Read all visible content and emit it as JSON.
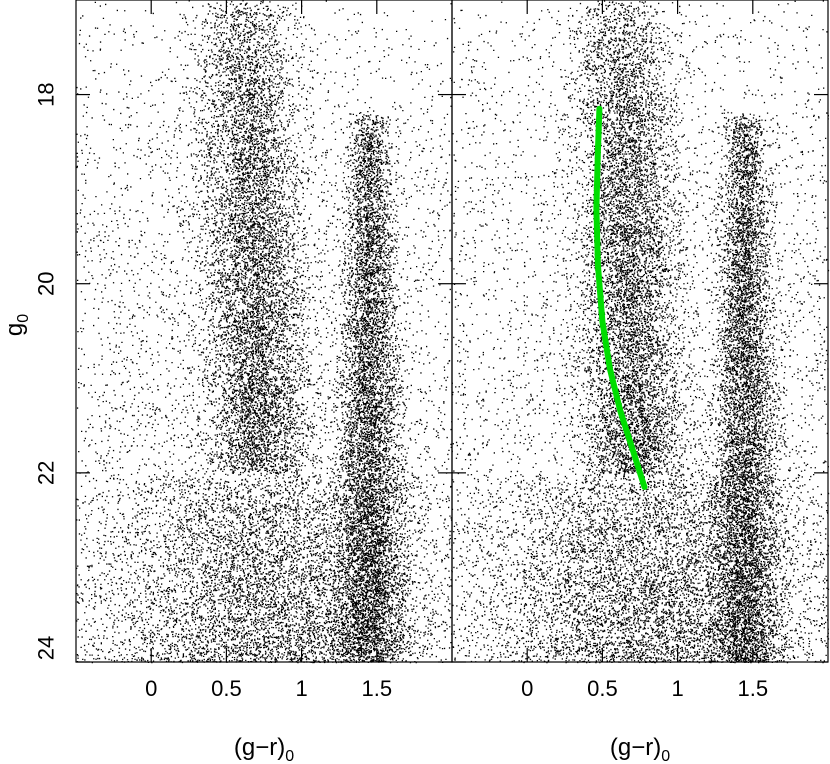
{
  "chart_data": [
    {
      "type": "scatter",
      "panel": "left",
      "xlabel": "(g−r)",
      "xlabel_sub": "0",
      "ylabel": "g",
      "ylabel_sub": "0",
      "xlim": [
        -0.5,
        2.0
      ],
      "ylim": [
        24,
        17
      ],
      "y_inverted": true,
      "x_ticks": [
        0,
        0.5,
        1,
        1.5
      ],
      "x_tick_labels": [
        "0",
        "0.5",
        "1",
        "1.5"
      ],
      "y_ticks": [
        18,
        20,
        22,
        24
      ],
      "y_tick_labels": [
        "18",
        "20",
        "22",
        "24"
      ],
      "grid": false,
      "point_color": "#000000",
      "features": [
        {
          "kind": "background-field",
          "x_range": [
            -0.5,
            2.0
          ],
          "y_range": [
            17,
            24
          ],
          "weight": 0.18
        },
        {
          "kind": "blue-plume-band",
          "x_center_top": 0.62,
          "x_center_bottom": 0.72,
          "y_range": [
            17,
            22
          ],
          "sigma": 0.17,
          "weight": 0.3
        },
        {
          "kind": "red-dwarf-ridge",
          "x_center_top": 1.45,
          "x_center_bottom": 1.45,
          "y_range": [
            18.2,
            24
          ],
          "sigma": 0.09,
          "weight": 0.3
        },
        {
          "kind": "faint-spread",
          "x_center_top": 0.8,
          "x_center_bottom": 0.8,
          "y_range": [
            22,
            24
          ],
          "sigma": 0.55,
          "weight": 0.22
        }
      ],
      "overlay": null
    },
    {
      "type": "scatter",
      "panel": "right",
      "xlabel": "(g−r)",
      "xlabel_sub": "0",
      "ylabel": "",
      "ylabel_sub": "",
      "xlim": [
        -0.5,
        2.0
      ],
      "ylim": [
        24,
        17
      ],
      "y_inverted": true,
      "x_ticks": [
        0,
        0.5,
        1,
        1.5
      ],
      "x_tick_labels": [
        "0",
        "0.5",
        "1",
        "1.5"
      ],
      "y_ticks": [
        18,
        20,
        22,
        24
      ],
      "y_tick_labels": [],
      "grid": false,
      "point_color": "#000000",
      "features": [
        {
          "kind": "background-field",
          "x_range": [
            -0.5,
            2.0
          ],
          "y_range": [
            17,
            24
          ],
          "weight": 0.18
        },
        {
          "kind": "blue-plume-band",
          "x_center_top": 0.62,
          "x_center_bottom": 0.72,
          "y_range": [
            17,
            22
          ],
          "sigma": 0.17,
          "weight": 0.3
        },
        {
          "kind": "red-dwarf-ridge",
          "x_center_top": 1.45,
          "x_center_bottom": 1.45,
          "y_range": [
            18.2,
            24
          ],
          "sigma": 0.09,
          "weight": 0.3
        },
        {
          "kind": "faint-spread",
          "x_center_top": 0.8,
          "x_center_bottom": 0.8,
          "y_range": [
            22,
            24
          ],
          "sigma": 0.55,
          "weight": 0.22
        }
      ],
      "overlay": {
        "type": "line",
        "color": "#00dd00",
        "x": [
          0.48,
          0.47,
          0.46,
          0.47,
          0.5,
          0.55,
          0.62,
          0.7,
          0.78
        ],
        "y": [
          18.15,
          18.6,
          19.2,
          19.8,
          20.4,
          20.9,
          21.35,
          21.75,
          22.15
        ]
      }
    }
  ]
}
